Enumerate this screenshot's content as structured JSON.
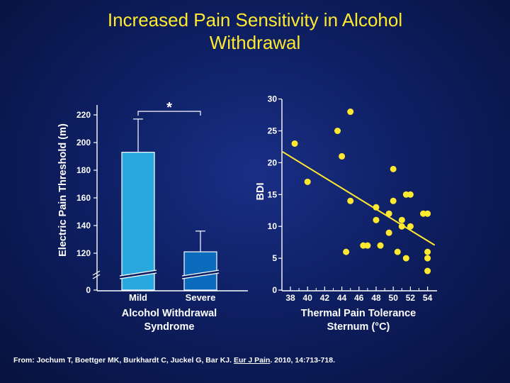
{
  "slide": {
    "title": "Increased Pain Sensitivity in Alcohol\nWithdrawal",
    "citation_prefix": "From: Jochum T, Boettger MK, Burkhardt C, Juckel G, Bar KJ. ",
    "citation_journal": "Eur J Pain",
    "citation_suffix": ". 2010, 14:713-718."
  },
  "colors": {
    "title": "#ffe92e",
    "bar_mild": "#29a8e0",
    "bar_severe": "#0b6bbd",
    "scatter_point": "#ffe92e",
    "regression_line": "#ffe92e"
  },
  "chart_data": [
    {
      "type": "bar",
      "ylabel": "Electric Pain Threshold (m)",
      "xlabel": "Alcohol Withdrawal\nSyndrome",
      "categories": [
        "Mild",
        "Severe"
      ],
      "values": [
        193,
        121
      ],
      "error_upper": [
        217,
        136
      ],
      "yticks": [
        0,
        120,
        140,
        160,
        180,
        200,
        220
      ],
      "axis_break": true,
      "ylim": [
        100,
        230
      ],
      "annotation": "*"
    },
    {
      "type": "scatter",
      "xlabel": "Thermal Pain Tolerance\nSternum (°C)",
      "ylabel": "BDI",
      "xticks": [
        38,
        40,
        42,
        44,
        46,
        48,
        50,
        52,
        54
      ],
      "yticks": [
        0,
        5,
        10,
        15,
        20,
        25,
        30
      ],
      "xlim": [
        36.5,
        55
      ],
      "ylim": [
        0,
        30
      ],
      "points": [
        [
          38.5,
          23
        ],
        [
          40,
          17
        ],
        [
          43.5,
          25
        ],
        [
          44,
          21
        ],
        [
          45,
          28
        ],
        [
          44.5,
          6
        ],
        [
          45,
          14
        ],
        [
          46.5,
          7
        ],
        [
          47,
          7
        ],
        [
          48,
          13
        ],
        [
          48,
          11
        ],
        [
          48.5,
          7
        ],
        [
          49.5,
          9
        ],
        [
          49.5,
          12
        ],
        [
          50,
          14
        ],
        [
          50,
          19
        ],
        [
          50.5,
          6
        ],
        [
          51,
          11
        ],
        [
          51,
          10
        ],
        [
          51.5,
          5
        ],
        [
          51.5,
          15
        ],
        [
          52,
          10
        ],
        [
          52,
          15
        ],
        [
          53.5,
          12
        ],
        [
          54,
          12
        ],
        [
          54,
          6
        ],
        [
          54,
          5
        ],
        [
          54,
          3
        ]
      ],
      "regression": [
        [
          36.5,
          21.5
        ],
        [
          55,
          7.5
        ]
      ]
    }
  ]
}
